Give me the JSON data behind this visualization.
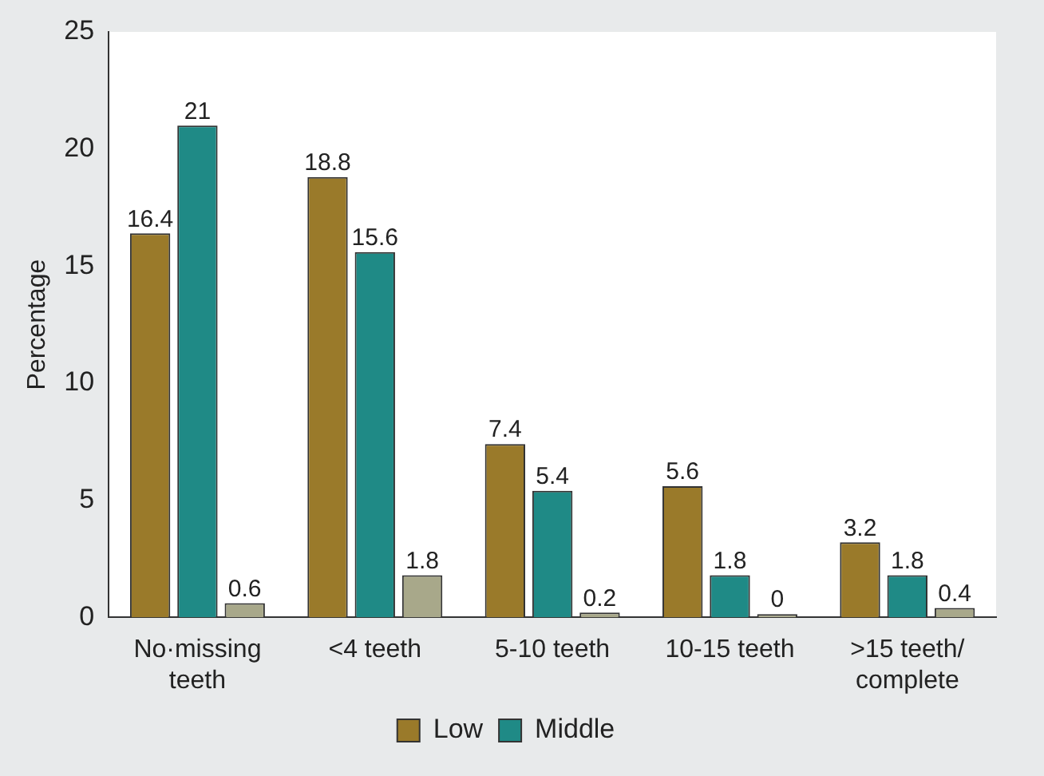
{
  "chart_data": {
    "type": "bar",
    "ylabel": "Percentage",
    "categories": [
      "No·missing\nteeth",
      "<4 teeth",
      "5-10 teeth",
      "10-15 teeth",
      ">15 teeth/\ncomplete"
    ],
    "series": [
      {
        "name": "Low",
        "color": "#9a7a2a",
        "values": [
          16.4,
          18.8,
          7.4,
          5.6,
          3.2
        ]
      },
      {
        "name": "Middle",
        "color": "#1f8a86",
        "values": [
          21,
          15.6,
          5.4,
          1.8,
          1.8
        ]
      },
      {
        "color": "#a8a88a",
        "values": [
          0.6,
          1.8,
          0.2,
          0,
          0.4
        ]
      }
    ],
    "ylim": [
      0,
      25
    ],
    "yticks": [
      0,
      5,
      10,
      15,
      20,
      25
    ],
    "grid": false,
    "legend": "bottom",
    "data_labels": true
  }
}
